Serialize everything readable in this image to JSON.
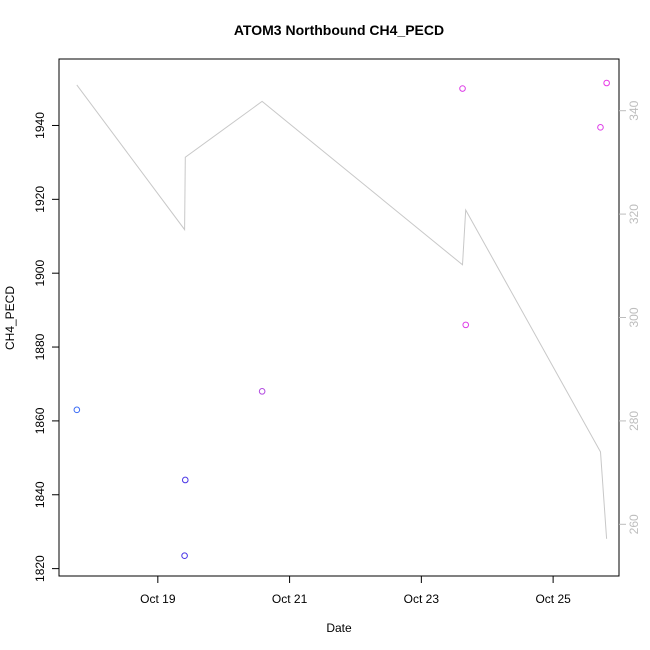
{
  "chart_data": {
    "type": "scatter",
    "title": "ATOM3 Northbound CH4_PECD",
    "xlabel": "Date",
    "ylabel": "CH4_PECD",
    "xlim": [
      "2016-10-17T12:00",
      "2016-10-26T00:00"
    ],
    "ylim": [
      1818,
      1958
    ],
    "y2lim": [
      250,
      350
    ],
    "x_ticks": [
      {
        "date": "2016-10-19T00:00",
        "label": "Oct 19"
      },
      {
        "date": "2016-10-21T00:00",
        "label": "Oct 21"
      },
      {
        "date": "2016-10-23T00:00",
        "label": "Oct 23"
      },
      {
        "date": "2016-10-25T00:00",
        "label": "Oct 25"
      }
    ],
    "y_ticks": [
      {
        "value": 1820,
        "label": "1820"
      },
      {
        "value": 1840,
        "label": "1840"
      },
      {
        "value": 1860,
        "label": "1860"
      },
      {
        "value": 1880,
        "label": "1880"
      },
      {
        "value": 1900,
        "label": "1900"
      },
      {
        "value": 1920,
        "label": "1920"
      },
      {
        "value": 1940,
        "label": "1940"
      }
    ],
    "y2_ticks": [
      {
        "value": 260,
        "label": "260"
      },
      {
        "value": 280,
        "label": "280"
      },
      {
        "value": 300,
        "label": "300"
      },
      {
        "value": 320,
        "label": "320"
      },
      {
        "value": 340,
        "label": "340"
      }
    ],
    "points": [
      {
        "x": "2016-10-17T18:30",
        "y": 1863,
        "color": "#3b6cf5"
      },
      {
        "x": "2016-10-19T10:00",
        "y": 1844,
        "color": "#4a35e6"
      },
      {
        "x": "2016-10-19T09:45",
        "y": 1823.5,
        "color": "#4a35e6"
      },
      {
        "x": "2016-10-20T14:00",
        "y": 1868,
        "color": "#b24ae0"
      },
      {
        "x": "2016-10-23T15:00",
        "y": 1950,
        "color": "#de3fe8"
      },
      {
        "x": "2016-10-23T16:10",
        "y": 1886,
        "color": "#de3fe8"
      },
      {
        "x": "2016-10-25T17:15",
        "y": 1939.5,
        "color": "#de3fe8"
      },
      {
        "x": "2016-10-25T19:30",
        "y": 1951.5,
        "color": "#e83ae6"
      }
    ],
    "line_series": {
      "axis": "right",
      "color": "#c8c8c8",
      "points": [
        {
          "x": "2016-10-17T18:30",
          "y": 345
        },
        {
          "x": "2016-10-19T09:45",
          "y": 317
        },
        {
          "x": "2016-10-19T10:00",
          "y": 331
        },
        {
          "x": "2016-10-20T14:00",
          "y": 341.8
        },
        {
          "x": "2016-10-23T15:00",
          "y": 310.2
        },
        {
          "x": "2016-10-23T16:10",
          "y": 320.8
        },
        {
          "x": "2016-10-25T17:15",
          "y": 274
        },
        {
          "x": "2016-10-25T19:30",
          "y": 257.2
        }
      ]
    },
    "grid": false,
    "legend": "none"
  }
}
